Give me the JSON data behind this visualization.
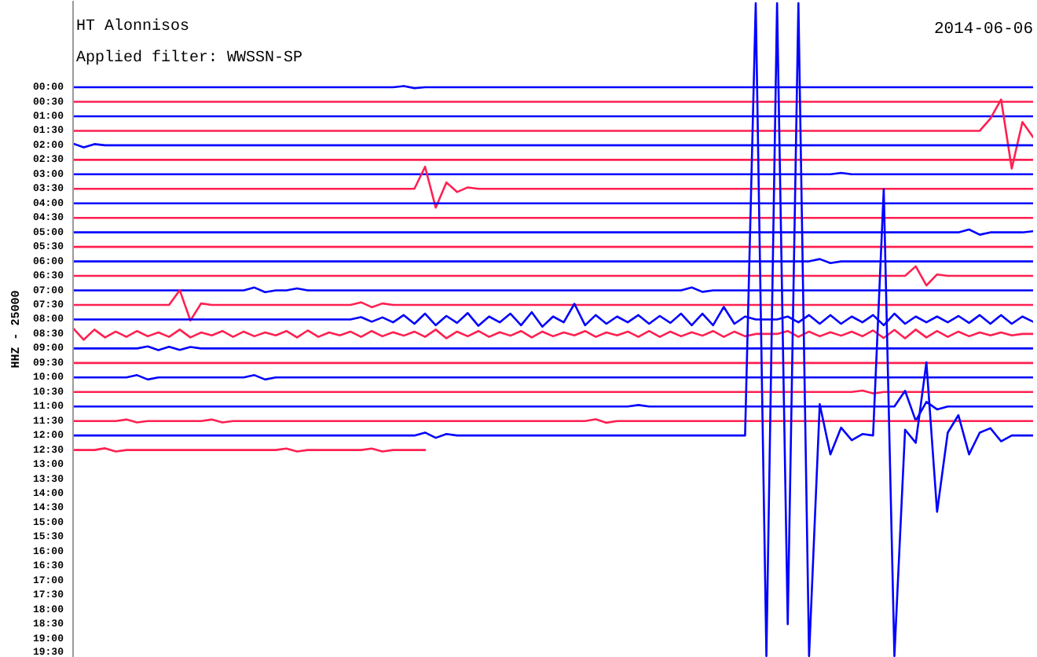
{
  "chart_data": {
    "type": "line",
    "title": "HT Alonnisos",
    "subtitle": "Applied filter: WWSSN-SP",
    "ylabel": "HHZ - 25000",
    "annotations": [
      "2014-06-06"
    ],
    "tick_labels": "y",
    "ylim": [
      19.66,
      -2.98
    ],
    "yticks": [
      {
        "value": 0,
        "label": "00:00"
      },
      {
        "value": 0.5,
        "label": "00:30"
      },
      {
        "value": 1,
        "label": "01:00"
      },
      {
        "value": 1.5,
        "label": "01:30"
      },
      {
        "value": 2,
        "label": "02:00"
      },
      {
        "value": 2.5,
        "label": "02:30"
      },
      {
        "value": 3,
        "label": "03:00"
      },
      {
        "value": 3.5,
        "label": "03:30"
      },
      {
        "value": 4,
        "label": "04:00"
      },
      {
        "value": 4.5,
        "label": "04:30"
      },
      {
        "value": 5,
        "label": "05:00"
      },
      {
        "value": 5.5,
        "label": "05:30"
      },
      {
        "value": 6,
        "label": "06:00"
      },
      {
        "value": 6.5,
        "label": "06:30"
      },
      {
        "value": 7,
        "label": "07:00"
      },
      {
        "value": 7.5,
        "label": "07:30"
      },
      {
        "value": 8,
        "label": "08:00"
      },
      {
        "value": 8.5,
        "label": "08:30"
      },
      {
        "value": 9,
        "label": "09:00"
      },
      {
        "value": 9.5,
        "label": "09:30"
      },
      {
        "value": 10,
        "label": "10:00"
      },
      {
        "value": 10.5,
        "label": "10:30"
      },
      {
        "value": 11,
        "label": "11:00"
      },
      {
        "value": 11.5,
        "label": "11:30"
      },
      {
        "value": 12,
        "label": "12:00"
      },
      {
        "value": 12.5,
        "label": "12:30"
      },
      {
        "value": 13,
        "label": "13:00"
      },
      {
        "value": 13.5,
        "label": "13:30"
      },
      {
        "value": 14,
        "label": "14:00"
      },
      {
        "value": 14.5,
        "label": "14:30"
      },
      {
        "value": 15,
        "label": "15:00"
      },
      {
        "value": 15.5,
        "label": "15:30"
      },
      {
        "value": 16,
        "label": "16:00"
      },
      {
        "value": 16.5,
        "label": "16:30"
      },
      {
        "value": 17,
        "label": "17:00"
      },
      {
        "value": 17.5,
        "label": "17:30"
      },
      {
        "value": 18,
        "label": "18:00"
      },
      {
        "value": 18.5,
        "label": "18:30"
      },
      {
        "value": 19,
        "label": "19:00"
      },
      {
        "value": 19.5,
        "label": "19:30"
      }
    ],
    "categories": [
      null,
      null,
      null,
      null,
      null,
      null,
      null,
      null,
      null,
      null,
      null,
      null,
      null,
      null,
      null,
      null,
      null,
      null,
      null,
      null,
      null,
      null,
      null,
      null,
      null,
      null,
      null,
      null,
      null,
      null,
      null,
      null,
      null,
      null,
      null,
      null,
      null,
      null,
      null,
      null,
      null,
      null,
      null,
      null,
      null,
      null,
      null,
      null,
      null,
      null,
      null,
      null,
      null,
      null,
      null,
      null,
      null,
      null,
      null,
      null,
      null,
      null,
      null,
      null,
      null,
      null,
      null,
      null,
      null,
      null,
      null,
      null,
      null,
      null,
      null,
      null,
      null,
      null,
      null,
      null,
      null,
      null,
      null,
      null,
      null,
      null,
      null,
      null,
      null,
      null,
      null
    ],
    "series": [
      {
        "color": "#0000ff",
        "values": [
          0,
          0,
          0,
          0,
          0,
          0,
          0,
          0,
          0,
          0,
          0,
          0,
          0,
          0,
          0,
          0,
          0,
          0,
          0,
          0,
          0,
          0,
          0,
          0,
          0,
          0,
          0,
          0,
          0,
          0,
          0,
          -0.04,
          0.03,
          0,
          0,
          0,
          0,
          0,
          0,
          0,
          0,
          0,
          0,
          0,
          0,
          0,
          0,
          0,
          0,
          0,
          0,
          0,
          0,
          0,
          0,
          0,
          0,
          0,
          0,
          0,
          0,
          0,
          0,
          0,
          0,
          0,
          0,
          0,
          0,
          0,
          0,
          0,
          0,
          0,
          0,
          0,
          0,
          0,
          0,
          0,
          0,
          0,
          0,
          0,
          0,
          0,
          0,
          0,
          0,
          0,
          0
        ]
      },
      {
        "color": "#ff2050",
        "values": [
          0.5,
          0.5,
          0.5,
          0.5,
          0.5,
          0.5,
          0.5,
          0.5,
          0.5,
          0.5,
          0.5,
          0.5,
          0.5,
          0.5,
          0.5,
          0.5,
          0.5,
          0.5,
          0.5,
          0.5,
          0.5,
          0.5,
          0.5,
          0.5,
          0.5,
          0.5,
          0.5,
          0.5,
          0.5,
          0.5,
          0.5,
          0.5,
          0.5,
          0.5,
          0.5,
          0.5,
          0.5,
          0.5,
          0.5,
          0.5,
          0.5,
          0.5,
          0.5,
          0.5,
          0.5,
          0.5,
          0.5,
          0.5,
          0.5,
          0.5,
          0.5,
          0.5,
          0.5,
          0.5,
          0.5,
          0.5,
          0.5,
          0.5,
          0.5,
          0.5,
          0.5,
          0.5,
          0.5,
          0.5,
          0.5,
          0.5,
          0.5,
          0.5,
          0.5,
          0.5,
          0.5,
          0.5,
          0.5,
          0.5,
          0.5,
          0.5,
          0.5,
          0.5,
          0.5,
          0.5,
          0.5,
          0.5,
          0.5,
          0.5,
          0.5,
          0.5,
          0.5,
          0.5,
          0.5,
          0.5,
          0.5
        ]
      },
      {
        "color": "#0000ff",
        "values": [
          1,
          1,
          1,
          1,
          1,
          1,
          1,
          1,
          1,
          1,
          1,
          1,
          1,
          1,
          1,
          1,
          1,
          1,
          1,
          1,
          1,
          1,
          1,
          1,
          1,
          1,
          1,
          1,
          1,
          1,
          1,
          1,
          1,
          1,
          1,
          1,
          1,
          1,
          1,
          1,
          1,
          1,
          1,
          1,
          1,
          1,
          1,
          1,
          1,
          1,
          1,
          1,
          1,
          1,
          1,
          1,
          1,
          1,
          1,
          1,
          1,
          1,
          1,
          1,
          1,
          1,
          1,
          1,
          1,
          1,
          1,
          1,
          1,
          1,
          1,
          1,
          1,
          1,
          1,
          1,
          1,
          1,
          1,
          1,
          1,
          1,
          1,
          1,
          1,
          1,
          1
        ]
      },
      {
        "color": "#ff2050",
        "values": [
          1.5,
          1.5,
          1.5,
          1.5,
          1.5,
          1.5,
          1.5,
          1.5,
          1.5,
          1.5,
          1.5,
          1.5,
          1.5,
          1.5,
          1.5,
          1.5,
          1.5,
          1.5,
          1.5,
          1.5,
          1.5,
          1.5,
          1.5,
          1.5,
          1.5,
          1.5,
          1.5,
          1.5,
          1.5,
          1.5,
          1.5,
          1.5,
          1.5,
          1.5,
          1.5,
          1.5,
          1.5,
          1.5,
          1.5,
          1.5,
          1.5,
          1.5,
          1.5,
          1.5,
          1.5,
          1.5,
          1.5,
          1.5,
          1.5,
          1.5,
          1.5,
          1.5,
          1.5,
          1.5,
          1.5,
          1.5,
          1.5,
          1.5,
          1.5,
          1.5,
          1.5,
          1.5,
          1.5,
          1.5,
          1.5,
          1.5,
          1.5,
          1.5,
          1.5,
          1.5,
          1.5,
          1.5,
          1.5,
          1.5,
          1.5,
          1.5,
          1.5,
          1.5,
          1.5,
          1.5,
          1.5,
          1.5,
          1.5,
          1.5,
          1.5,
          1.5,
          1.08,
          0.42,
          2.8,
          1.2,
          1.72
        ]
      },
      {
        "color": "#0000ff",
        "values": [
          1.94,
          2.07,
          1.96,
          2,
          2,
          2,
          2,
          2,
          2,
          2,
          2,
          2,
          2,
          2,
          2,
          2,
          2,
          2,
          2,
          2,
          2,
          2,
          2,
          2,
          2,
          2,
          2,
          2,
          2,
          2,
          2,
          2,
          2,
          2,
          2,
          2,
          2,
          2,
          2,
          2,
          2,
          2,
          2,
          2,
          2,
          2,
          2,
          2,
          2,
          2,
          2,
          2,
          2,
          2,
          2,
          2,
          2,
          2,
          2,
          2,
          2,
          2,
          2,
          2,
          2,
          2,
          2,
          2,
          2,
          2,
          2,
          2,
          2,
          2,
          2,
          2,
          2,
          2,
          2,
          2,
          2,
          2,
          2,
          2,
          2,
          2,
          2,
          2,
          2,
          2,
          2
        ]
      },
      {
        "color": "#ff2050",
        "values": [
          2.5,
          2.5,
          2.5,
          2.5,
          2.5,
          2.5,
          2.5,
          2.5,
          2.5,
          2.5,
          2.5,
          2.5,
          2.5,
          2.5,
          2.5,
          2.5,
          2.5,
          2.5,
          2.5,
          2.5,
          2.5,
          2.5,
          2.5,
          2.5,
          2.5,
          2.5,
          2.5,
          2.5,
          2.5,
          2.5,
          2.5,
          2.5,
          2.5,
          2.5,
          2.5,
          2.5,
          2.5,
          2.5,
          2.5,
          2.5,
          2.5,
          2.5,
          2.5,
          2.5,
          2.5,
          2.5,
          2.5,
          2.5,
          2.5,
          2.5,
          2.5,
          2.5,
          2.5,
          2.5,
          2.5,
          2.5,
          2.5,
          2.5,
          2.5,
          2.5,
          2.5,
          2.5,
          2.5,
          2.5,
          2.5,
          2.5,
          2.5,
          2.5,
          2.5,
          2.5,
          2.5,
          2.5,
          2.5,
          2.5,
          2.5,
          2.5,
          2.5,
          2.5,
          2.5,
          2.5,
          2.5,
          2.5,
          2.5,
          2.5,
          2.5,
          2.5,
          2.5,
          2.5,
          2.5,
          2.5,
          2.5
        ]
      },
      {
        "color": "#0000ff",
        "values": [
          3,
          3,
          3,
          3,
          3,
          3,
          3,
          3,
          3,
          3,
          3,
          3,
          3,
          3,
          3,
          3,
          3,
          3,
          3,
          3,
          3,
          3,
          3,
          3,
          3,
          3,
          3,
          3,
          3,
          3,
          3,
          3,
          3,
          3,
          3,
          3,
          3,
          3,
          3,
          3,
          3,
          3,
          3,
          3,
          3,
          3,
          3,
          3,
          3,
          3,
          3,
          3,
          3,
          3,
          3,
          3,
          3,
          3,
          3,
          3,
          3,
          3,
          3,
          3,
          3,
          3,
          3,
          3,
          3,
          3,
          3,
          3,
          2.95,
          3,
          3,
          3,
          3,
          3,
          3,
          3,
          3,
          3,
          3,
          3,
          3,
          3,
          3,
          3,
          3,
          3,
          3
        ]
      },
      {
        "color": "#ff2050",
        "values": [
          3.5,
          3.5,
          3.5,
          3.5,
          3.5,
          3.5,
          3.5,
          3.5,
          3.5,
          3.5,
          3.5,
          3.5,
          3.5,
          3.5,
          3.5,
          3.5,
          3.5,
          3.5,
          3.5,
          3.5,
          3.5,
          3.5,
          3.5,
          3.5,
          3.5,
          3.5,
          3.5,
          3.5,
          3.5,
          3.5,
          3.5,
          3.5,
          3.5,
          2.74,
          4.15,
          3.28,
          3.61,
          3.45,
          3.5,
          3.5,
          3.5,
          3.5,
          3.5,
          3.5,
          3.5,
          3.5,
          3.5,
          3.5,
          3.5,
          3.5,
          3.5,
          3.5,
          3.5,
          3.5,
          3.5,
          3.5,
          3.5,
          3.5,
          3.5,
          3.5,
          3.5,
          3.5,
          3.5,
          3.5,
          3.5,
          3.5,
          3.5,
          3.5,
          3.5,
          3.5,
          3.5,
          3.5,
          3.5,
          3.5,
          3.5,
          3.5,
          3.5,
          3.5,
          3.5,
          3.5,
          3.5,
          3.5,
          3.5,
          3.5,
          3.5,
          3.5,
          3.5,
          3.5,
          3.5,
          3.5,
          3.5
        ]
      },
      {
        "color": "#0000ff",
        "values": [
          4,
          4,
          4,
          4,
          4,
          4,
          4,
          4,
          4,
          4,
          4,
          4,
          4,
          4,
          4,
          4,
          4,
          4,
          4,
          4,
          4,
          4,
          4,
          4,
          4,
          4,
          4,
          4,
          4,
          4,
          4,
          4,
          4,
          4,
          4,
          4,
          4,
          4,
          4,
          4,
          4,
          4,
          4,
          4,
          4,
          4,
          4,
          4,
          4,
          4,
          4,
          4,
          4,
          4,
          4,
          4,
          4,
          4,
          4,
          4,
          4,
          4,
          4,
          4,
          4,
          4,
          4,
          4,
          4,
          4,
          4,
          4,
          4,
          4,
          4,
          4,
          4,
          4,
          4,
          4,
          4,
          4,
          4,
          4,
          4,
          4,
          4,
          4,
          4,
          4,
          4
        ]
      },
      {
        "color": "#ff2050",
        "values": [
          4.5,
          4.5,
          4.5,
          4.5,
          4.5,
          4.5,
          4.5,
          4.5,
          4.5,
          4.5,
          4.5,
          4.5,
          4.5,
          4.5,
          4.5,
          4.5,
          4.5,
          4.5,
          4.5,
          4.5,
          4.5,
          4.5,
          4.5,
          4.5,
          4.5,
          4.5,
          4.5,
          4.5,
          4.5,
          4.5,
          4.5,
          4.5,
          4.5,
          4.5,
          4.5,
          4.5,
          4.5,
          4.5,
          4.5,
          4.5,
          4.5,
          4.5,
          4.5,
          4.5,
          4.5,
          4.5,
          4.5,
          4.5,
          4.5,
          4.5,
          4.5,
          4.5,
          4.5,
          4.5,
          4.5,
          4.5,
          4.5,
          4.5,
          4.5,
          4.5,
          4.5,
          4.5,
          4.5,
          4.5,
          4.5,
          4.5,
          4.5,
          4.5,
          4.5,
          4.5,
          4.5,
          4.5,
          4.5,
          4.5,
          4.5,
          4.5,
          4.5,
          4.5,
          4.5,
          4.5,
          4.5,
          4.5,
          4.5,
          4.5,
          4.5,
          4.5,
          4.5,
          4.5,
          4.5,
          4.5,
          4.5
        ]
      },
      {
        "color": "#0000ff",
        "values": [
          5,
          5,
          5,
          5,
          5,
          5,
          5,
          5,
          5,
          5,
          5,
          5,
          5,
          5,
          5,
          5,
          5,
          5,
          5,
          5,
          5,
          5,
          5,
          5,
          5,
          5,
          5,
          5,
          5,
          5,
          5,
          5,
          5,
          5,
          5,
          5,
          5,
          5,
          5,
          5,
          5,
          5,
          5,
          5,
          5,
          5,
          5,
          5,
          5,
          5,
          5,
          5,
          5,
          5,
          5,
          5,
          5,
          5,
          5,
          5,
          5,
          5,
          5,
          5,
          5,
          5,
          5,
          5,
          5,
          5,
          5,
          5,
          5,
          5,
          5,
          5,
          5,
          5,
          5,
          5,
          5,
          5,
          5,
          5,
          4.9,
          5.08,
          5,
          5,
          5,
          5,
          4.96
        ]
      },
      {
        "color": "#ff2050",
        "values": [
          5.5,
          5.5,
          5.5,
          5.5,
          5.5,
          5.5,
          5.5,
          5.5,
          5.5,
          5.5,
          5.5,
          5.5,
          5.5,
          5.5,
          5.5,
          5.5,
          5.5,
          5.5,
          5.5,
          5.5,
          5.5,
          5.5,
          5.5,
          5.5,
          5.5,
          5.5,
          5.5,
          5.5,
          5.5,
          5.5,
          5.5,
          5.5,
          5.5,
          5.5,
          5.5,
          5.5,
          5.5,
          5.5,
          5.5,
          5.5,
          5.5,
          5.5,
          5.5,
          5.5,
          5.5,
          5.5,
          5.5,
          5.5,
          5.5,
          5.5,
          5.5,
          5.5,
          5.5,
          5.5,
          5.5,
          5.5,
          5.5,
          5.5,
          5.5,
          5.5,
          5.5,
          5.5,
          5.5,
          5.5,
          5.5,
          5.5,
          5.5,
          5.5,
          5.5,
          5.5,
          5.5,
          5.5,
          5.5,
          5.5,
          5.5,
          5.5,
          5.5,
          5.5,
          5.5,
          5.5,
          5.5,
          5.5,
          5.5,
          5.5,
          5.5,
          5.5,
          5.5,
          5.5,
          5.5,
          5.5,
          5.5
        ]
      },
      {
        "color": "#0000ff",
        "values": [
          6,
          6,
          6,
          6,
          6,
          6,
          6,
          6,
          6,
          6,
          6,
          6,
          6,
          6,
          6,
          6,
          6,
          6,
          6,
          6,
          6,
          6,
          6,
          6,
          6,
          6,
          6,
          6,
          6,
          6,
          6,
          6,
          6,
          6,
          6,
          6,
          6,
          6,
          6,
          6,
          6,
          6,
          6,
          6,
          6,
          6,
          6,
          6,
          6,
          6,
          6,
          6,
          6,
          6,
          6,
          6,
          6,
          6,
          6,
          6,
          6,
          6,
          6,
          6,
          6,
          6,
          6,
          6,
          6,
          6,
          5.92,
          6.06,
          6,
          6,
          6,
          6,
          6,
          6,
          6,
          6,
          6,
          6,
          6,
          6,
          6,
          6,
          6,
          6,
          6,
          6,
          6
        ]
      },
      {
        "color": "#ff2050",
        "values": [
          6.5,
          6.5,
          6.5,
          6.5,
          6.5,
          6.5,
          6.5,
          6.5,
          6.5,
          6.5,
          6.5,
          6.5,
          6.5,
          6.5,
          6.5,
          6.5,
          6.5,
          6.5,
          6.5,
          6.5,
          6.5,
          6.5,
          6.5,
          6.5,
          6.5,
          6.5,
          6.5,
          6.5,
          6.5,
          6.5,
          6.5,
          6.5,
          6.5,
          6.5,
          6.5,
          6.5,
          6.5,
          6.5,
          6.5,
          6.5,
          6.5,
          6.5,
          6.5,
          6.5,
          6.5,
          6.5,
          6.5,
          6.5,
          6.5,
          6.5,
          6.5,
          6.5,
          6.5,
          6.5,
          6.5,
          6.5,
          6.5,
          6.5,
          6.5,
          6.5,
          6.5,
          6.5,
          6.5,
          6.5,
          6.5,
          6.5,
          6.5,
          6.5,
          6.5,
          6.5,
          6.5,
          6.5,
          6.5,
          6.5,
          6.5,
          6.5,
          6.5,
          6.5,
          6.5,
          6.17,
          6.83,
          6.45,
          6.5,
          6.5,
          6.5,
          6.5,
          6.5,
          6.5,
          6.5,
          6.5,
          6.5
        ]
      },
      {
        "color": "#0000ff",
        "values": [
          7,
          7,
          7,
          7,
          7,
          7,
          7,
          7,
          7,
          7,
          7,
          7,
          7,
          7,
          7,
          7,
          7,
          6.9,
          7.06,
          7,
          7,
          6.93,
          7,
          7,
          7,
          7,
          7,
          7,
          7,
          7,
          7,
          7,
          7,
          7,
          7,
          7,
          7,
          7,
          7,
          7,
          7,
          7,
          7,
          7,
          7,
          7,
          7,
          7,
          7,
          7,
          7,
          7,
          7,
          7,
          7,
          7,
          7,
          7,
          6.9,
          7.05,
          7,
          7,
          7,
          7,
          7,
          7,
          7,
          7,
          7,
          7,
          7,
          7,
          7,
          7,
          7,
          7,
          7,
          7,
          7,
          7,
          7,
          7,
          7,
          7,
          7,
          7,
          7,
          7,
          7,
          7,
          7
        ]
      },
      {
        "color": "#ff2050",
        "values": [
          7.5,
          7.5,
          7.5,
          7.5,
          7.5,
          7.5,
          7.5,
          7.5,
          7.5,
          7.5,
          6.99,
          8.04,
          7.45,
          7.5,
          7.5,
          7.5,
          7.5,
          7.5,
          7.5,
          7.5,
          7.5,
          7.5,
          7.5,
          7.5,
          7.5,
          7.5,
          7.5,
          7.41,
          7.58,
          7.45,
          7.5,
          7.5,
          7.5,
          7.5,
          7.5,
          7.5,
          7.5,
          7.5,
          7.5,
          7.5,
          7.5,
          7.5,
          7.5,
          7.5,
          7.5,
          7.5,
          7.5,
          7.5,
          7.5,
          7.5,
          7.5,
          7.5,
          7.5,
          7.5,
          7.5,
          7.5,
          7.5,
          7.5,
          7.5,
          7.5,
          7.5,
          7.5,
          7.5,
          7.5,
          7.5,
          7.5,
          7.5,
          7.5,
          7.5,
          7.5,
          7.5,
          7.5,
          7.5,
          7.5,
          7.5,
          7.5,
          7.5,
          7.5,
          7.5,
          7.5,
          7.5,
          7.5,
          7.5,
          7.5,
          7.5,
          7.5,
          7.5,
          7.5,
          7.5,
          7.5,
          7.5
        ]
      },
      {
        "color": "#0000ff",
        "values": [
          8,
          8,
          8,
          8,
          8,
          8,
          8,
          8,
          8,
          8,
          8,
          8,
          8,
          8,
          8,
          8,
          8,
          8,
          8,
          8,
          8,
          8,
          8,
          8,
          8,
          8,
          8,
          7.92,
          8.08,
          7.93,
          8.1,
          7.85,
          8.15,
          7.8,
          8.2,
          7.88,
          8.12,
          7.78,
          8.22,
          7.9,
          8.1,
          7.8,
          8.2,
          7.75,
          8.25,
          7.9,
          8.1,
          7.46,
          8.2,
          7.85,
          8.15,
          7.9,
          8.1,
          7.85,
          8.15,
          7.88,
          8.12,
          7.8,
          8.2,
          7.8,
          8.2,
          7.57,
          8.15,
          7.9,
          8,
          8,
          8,
          7.9,
          8.1,
          7.85,
          8.15,
          7.85,
          8.15,
          7.9,
          8.1,
          7.85,
          8.2,
          7.8,
          8.15,
          7.9,
          8.1,
          7.9,
          8.1,
          7.88,
          8.12,
          7.85,
          8.15,
          7.85,
          8.15,
          7.9,
          8.08
        ]
      },
      {
        "color": "#ff2050",
        "values": [
          8.3,
          8.7,
          8.35,
          8.62,
          8.42,
          8.6,
          8.4,
          8.58,
          8.45,
          8.6,
          8.35,
          8.62,
          8.45,
          8.55,
          8.4,
          8.6,
          8.42,
          8.58,
          8.45,
          8.55,
          8.4,
          8.62,
          8.38,
          8.6,
          8.45,
          8.55,
          8.42,
          8.6,
          8.4,
          8.58,
          8.44,
          8.56,
          8.42,
          8.6,
          8.35,
          8.65,
          8.42,
          8.58,
          8.4,
          8.6,
          8.44,
          8.56,
          8.4,
          8.62,
          8.42,
          8.58,
          8.45,
          8.55,
          8.4,
          8.6,
          8.45,
          8.55,
          8.42,
          8.6,
          8.4,
          8.6,
          8.42,
          8.58,
          8.44,
          8.56,
          8.4,
          8.6,
          8.42,
          8.58,
          8.5,
          8.5,
          8.5,
          8.4,
          8.6,
          8.42,
          8.58,
          8.44,
          8.56,
          8.42,
          8.58,
          8.38,
          8.64,
          8.36,
          8.65,
          8.35,
          8.62,
          8.4,
          8.6,
          8.42,
          8.58,
          8.45,
          8.55,
          8.45,
          8.55,
          8.5,
          8.5
        ]
      },
      {
        "color": "#0000ff",
        "values": [
          9,
          9,
          9,
          9,
          9,
          9,
          9,
          8.93,
          9.06,
          8.94,
          9.05,
          8.95,
          9,
          9,
          9,
          9,
          9,
          9,
          9,
          9,
          9,
          9,
          9,
          9,
          9,
          9,
          9,
          9,
          9,
          9,
          9,
          9,
          9,
          9,
          9,
          9,
          9,
          9,
          9,
          9,
          9,
          9,
          9,
          9,
          9,
          9,
          9,
          9,
          9,
          9,
          9,
          9,
          9,
          9,
          9,
          9,
          9,
          9,
          9,
          9,
          9,
          9,
          9,
          9,
          9,
          9,
          9,
          9,
          9,
          9,
          9,
          9,
          9,
          9,
          9,
          9,
          9,
          9,
          9,
          9,
          9,
          9,
          9,
          9,
          9,
          9,
          9,
          9,
          9,
          9,
          9
        ]
      },
      {
        "color": "#ff2050",
        "values": [
          9.5,
          9.5,
          9.5,
          9.5,
          9.5,
          9.5,
          9.5,
          9.5,
          9.5,
          9.5,
          9.5,
          9.5,
          9.5,
          9.5,
          9.5,
          9.5,
          9.5,
          9.5,
          9.5,
          9.5,
          9.5,
          9.5,
          9.5,
          9.5,
          9.5,
          9.5,
          9.5,
          9.5,
          9.5,
          9.5,
          9.5,
          9.5,
          9.5,
          9.5,
          9.5,
          9.5,
          9.5,
          9.5,
          9.5,
          9.5,
          9.5,
          9.5,
          9.5,
          9.5,
          9.5,
          9.5,
          9.5,
          9.5,
          9.5,
          9.5,
          9.5,
          9.5,
          9.5,
          9.5,
          9.5,
          9.5,
          9.5,
          9.5,
          9.5,
          9.5,
          9.5,
          9.5,
          9.5,
          9.5,
          9.5,
          9.5,
          9.5,
          9.5,
          9.5,
          9.5,
          9.5,
          9.5,
          9.5,
          9.5,
          9.5,
          9.5,
          9.5,
          9.5,
          9.5,
          9.5,
          9.5,
          9.5,
          9.5,
          9.5,
          9.5,
          9.5,
          9.5,
          9.5,
          9.5,
          9.5,
          9.5
        ]
      },
      {
        "color": "#0000ff",
        "values": [
          10,
          10,
          10,
          10,
          10,
          10,
          9.92,
          10.07,
          10,
          10,
          10,
          10,
          10,
          10,
          10,
          10,
          10,
          9.92,
          10.07,
          10,
          10,
          10,
          10,
          10,
          10,
          10,
          10,
          10,
          10,
          10,
          10,
          10,
          10,
          10,
          10,
          10,
          10,
          10,
          10,
          10,
          10,
          10,
          10,
          10,
          10,
          10,
          10,
          10,
          10,
          10,
          10,
          10,
          10,
          10,
          10,
          10,
          10,
          10,
          10,
          10,
          10,
          10,
          10,
          10,
          10,
          10,
          10,
          10,
          10,
          10,
          10,
          10,
          10,
          10,
          10,
          10,
          10,
          10,
          10,
          10,
          10,
          10,
          10,
          10,
          10,
          10,
          10,
          10,
          10,
          10,
          10
        ]
      },
      {
        "color": "#ff2050",
        "values": [
          10.5,
          10.5,
          10.5,
          10.5,
          10.5,
          10.5,
          10.5,
          10.5,
          10.5,
          10.5,
          10.5,
          10.5,
          10.5,
          10.5,
          10.5,
          10.5,
          10.5,
          10.5,
          10.5,
          10.5,
          10.5,
          10.5,
          10.5,
          10.5,
          10.5,
          10.5,
          10.5,
          10.5,
          10.5,
          10.5,
          10.5,
          10.5,
          10.5,
          10.5,
          10.5,
          10.5,
          10.5,
          10.5,
          10.5,
          10.5,
          10.5,
          10.5,
          10.5,
          10.5,
          10.5,
          10.5,
          10.5,
          10.5,
          10.5,
          10.5,
          10.5,
          10.5,
          10.5,
          10.5,
          10.5,
          10.5,
          10.5,
          10.5,
          10.5,
          10.5,
          10.5,
          10.5,
          10.5,
          10.5,
          10.5,
          10.5,
          10.5,
          10.5,
          10.5,
          10.5,
          10.5,
          10.5,
          10.5,
          10.5,
          10.45,
          10.55,
          10.5,
          10.5,
          10.5,
          10.5,
          10.5,
          10.5,
          10.5,
          10.5,
          10.5,
          10.5,
          10.5,
          10.5,
          10.5,
          10.5,
          10.5
        ]
      },
      {
        "color": "#0000ff",
        "values": [
          11,
          11,
          11,
          11,
          11,
          11,
          11,
          11,
          11,
          11,
          11,
          11,
          11,
          11,
          11,
          11,
          11,
          11,
          11,
          11,
          11,
          11,
          11,
          11,
          11,
          11,
          11,
          11,
          11,
          11,
          11,
          11,
          11,
          11,
          11,
          11,
          11,
          11,
          11,
          11,
          11,
          11,
          11,
          11,
          11,
          11,
          11,
          11,
          11,
          11,
          11,
          11,
          11,
          10.95,
          11,
          11,
          11,
          11,
          11,
          11,
          11,
          11,
          11,
          11,
          11,
          11,
          11,
          11,
          11,
          11,
          11,
          11,
          11,
          11,
          11,
          11,
          11,
          11,
          10.46,
          11.49,
          10.84,
          11.1,
          11,
          11,
          11,
          11,
          11,
          11,
          11,
          11,
          11
        ]
      },
      {
        "color": "#ff2050",
        "values": [
          11.5,
          11.5,
          11.5,
          11.5,
          11.5,
          11.45,
          11.55,
          11.5,
          11.5,
          11.5,
          11.5,
          11.5,
          11.5,
          11.45,
          11.55,
          11.5,
          11.5,
          11.5,
          11.5,
          11.5,
          11.5,
          11.5,
          11.5,
          11.5,
          11.5,
          11.5,
          11.5,
          11.5,
          11.5,
          11.5,
          11.5,
          11.5,
          11.5,
          11.5,
          11.5,
          11.5,
          11.5,
          11.5,
          11.5,
          11.5,
          11.5,
          11.5,
          11.5,
          11.5,
          11.5,
          11.5,
          11.5,
          11.5,
          11.5,
          11.44,
          11.56,
          11.5,
          11.5,
          11.5,
          11.5,
          11.5,
          11.5,
          11.5,
          11.5,
          11.5,
          11.5,
          11.5,
          11.5,
          11.5,
          11.5,
          11.5,
          11.5,
          11.5,
          11.5,
          11.5,
          11.5,
          11.5,
          11.5,
          11.5,
          11.5,
          11.5,
          11.5,
          11.5,
          11.5,
          11.5,
          11.5,
          11.5,
          11.5,
          11.5,
          11.5,
          11.5,
          11.5,
          11.5,
          11.5,
          11.5,
          11.5
        ]
      },
      {
        "color": "#0000ff",
        "values": [
          12,
          12,
          12,
          12,
          12,
          12,
          12,
          12,
          12,
          12,
          12,
          12,
          12,
          12,
          12,
          12,
          12,
          12,
          12,
          12,
          12,
          12,
          12,
          12,
          12,
          12,
          12,
          12,
          12,
          12,
          12,
          12,
          12,
          11.9,
          12.08,
          11.95,
          12,
          12,
          12,
          12,
          12,
          12,
          12,
          12,
          12,
          12,
          12,
          12,
          12,
          12,
          12,
          12,
          12,
          12,
          12,
          12,
          12,
          12,
          12,
          12,
          12,
          12,
          12,
          12,
          -2.9,
          19.6,
          -2.9,
          18.5,
          -2.9,
          19.6,
          10.92,
          12.65,
          11.73,
          12.16,
          11.95,
          12,
          3.52,
          19.6,
          11.8,
          12.25,
          9.48,
          14.63,
          11.9,
          11.3,
          12.65,
          11.9,
          11.75,
          12.2,
          12,
          12,
          12
        ]
      },
      {
        "color": "#ff2050",
        "values": [
          12.5,
          12.5,
          12.5,
          12.44,
          12.55,
          12.5,
          12.5,
          12.5,
          12.5,
          12.5,
          12.5,
          12.5,
          12.5,
          12.5,
          12.5,
          12.5,
          12.5,
          12.5,
          12.5,
          12.5,
          12.45,
          12.55,
          12.5,
          12.5,
          12.5,
          12.5,
          12.5,
          12.5,
          12.45,
          12.55,
          12.5,
          12.5,
          12.5,
          12.5,
          null,
          null,
          null,
          null,
          null,
          null,
          null,
          null,
          null,
          null,
          null,
          null,
          null,
          null,
          null,
          null,
          null,
          null,
          null,
          null,
          null,
          null,
          null,
          null,
          null,
          null,
          null,
          null,
          null,
          null,
          null,
          null,
          null,
          null,
          null,
          null,
          null,
          null,
          null,
          null,
          null,
          null,
          null,
          null,
          null,
          null,
          null,
          null,
          null,
          null,
          null,
          null,
          null,
          null,
          null,
          null,
          null
        ]
      }
    ]
  }
}
